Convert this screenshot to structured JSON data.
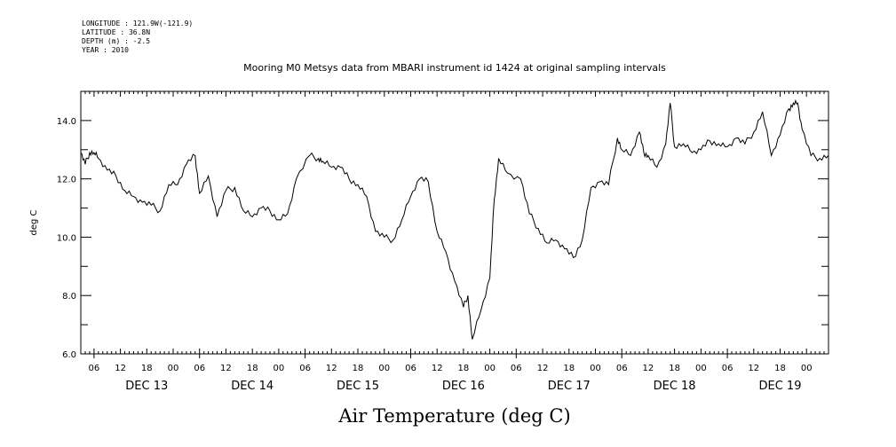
{
  "header": {
    "longitude": "LONGITUDE : 121.9W(-121.9)",
    "latitude": "LATITUDE : 36.8N",
    "depth": "DEPTH (m) : -2.5",
    "year": "YEAR : 2010",
    "title": "Mooring M0 Metsys data from MBARI instrument id 1424 at original sampling intervals"
  },
  "chart_data": {
    "type": "line",
    "title": "Mooring M0 Metsys data from MBARI instrument id 1424 at original sampling intervals",
    "bottom_title": "Air Temperature (deg C)",
    "ylabel": "deg C",
    "xlabel": "",
    "ylim": [
      6.0,
      15.0
    ],
    "xlim": [
      "2010-12-12 21:00",
      "2010-12-19 23:00"
    ],
    "grid": false,
    "y_ticks": [
      "6.0",
      "8.0",
      "10.0",
      "12.0",
      "14.0"
    ],
    "hour_ticks": [
      "06",
      "12",
      "18",
      "00",
      "06",
      "12",
      "18",
      "00",
      "06",
      "12",
      "18",
      "00",
      "06",
      "12",
      "18",
      "00",
      "06",
      "12",
      "18",
      "00",
      "06",
      "12",
      "18",
      "00",
      "06",
      "12",
      "18",
      "00"
    ],
    "day_labels": [
      "DEC 13",
      "DEC 14",
      "DEC 15",
      "DEC 16",
      "DEC 17",
      "DEC 18",
      "DEC 19"
    ],
    "series": [
      {
        "x": [
          "2010-12-12 21:00",
          "2010-12-12 22:00",
          "2010-12-12 23:00",
          "2010-12-13 00:00",
          "2010-12-13 01:00",
          "2010-12-13 03:00",
          "2010-12-13 05:00",
          "2010-12-13 07:00",
          "2010-12-13 09:00",
          "2010-12-13 11:00",
          "2010-12-13 13:00",
          "2010-12-13 15:00",
          "2010-12-13 17:00",
          "2010-12-13 19:00",
          "2010-12-13 21:00",
          "2010-12-13 23:00",
          "2010-12-14 00:00",
          "2010-12-14 02:00",
          "2010-12-14 04:00",
          "2010-12-14 06:00",
          "2010-12-14 08:00",
          "2010-12-14 10:00",
          "2010-12-14 12:00",
          "2010-12-14 14:00",
          "2010-12-14 16:00",
          "2010-12-14 18:00",
          "2010-12-14 20:00",
          "2010-12-14 22:00",
          "2010-12-15 01:00",
          "2010-12-15 03:00",
          "2010-12-15 04:00",
          "2010-12-15 06:00",
          "2010-12-15 08:00",
          "2010-12-15 10:00",
          "2010-12-15 12:00",
          "2010-12-15 14:00",
          "2010-12-15 16:00",
          "2010-12-15 18:00",
          "2010-12-15 20:00",
          "2010-12-15 22:00",
          "2010-12-16 00:00",
          "2010-12-16 02:00",
          "2010-12-16 04:00",
          "2010-12-16 06:00",
          "2010-12-16 08:00",
          "2010-12-16 10:00",
          "2010-12-16 12:00",
          "2010-12-16 13:00",
          "2010-12-16 14:00",
          "2010-12-16 16:00",
          "2010-12-16 18:00",
          "2010-12-16 19:00",
          "2010-12-16 20:00",
          "2010-12-16 22:00",
          "2010-12-17 01:00",
          "2010-12-17 03:00",
          "2010-12-17 05:00",
          "2010-12-17 07:00",
          "2010-12-17 09:00",
          "2010-12-17 11:00",
          "2010-12-17 13:00",
          "2010-12-17 15:00",
          "2010-12-17 17:00",
          "2010-12-17 19:00",
          "2010-12-17 21:00",
          "2010-12-17 23:00",
          "2010-12-18 00:00",
          "2010-12-18 02:00",
          "2010-12-18 04:00",
          "2010-12-18 05:00",
          "2010-12-18 06:00",
          "2010-12-18 08:00",
          "2010-12-18 10:00",
          "2010-12-18 11:00",
          "2010-12-18 12:00",
          "2010-12-18 14:00",
          "2010-12-18 16:00",
          "2010-12-18 18:00",
          "2010-12-18 20:00",
          "2010-12-18 22:00",
          "2010-12-19 00:00",
          "2010-12-19 02:00",
          "2010-12-19 04:00",
          "2010-12-19 06:00",
          "2010-12-19 08:00",
          "2010-12-19 10:00",
          "2010-12-19 12:00",
          "2010-12-19 14:00",
          "2010-12-19 15:00",
          "2010-12-19 16:00",
          "2010-12-19 17:00",
          "2010-12-19 19:00",
          "2010-12-19 21:00",
          "2010-12-19 23:00"
        ],
        "y": [
          12.9,
          12.5,
          12.9,
          12.9,
          12.7,
          12.3,
          12.1,
          11.6,
          11.4,
          11.2,
          11.1,
          10.9,
          11.8,
          11.8,
          12.5,
          12.8,
          11.5,
          12.1,
          10.7,
          11.6,
          11.7,
          10.9,
          10.7,
          11.0,
          10.9,
          10.6,
          10.8,
          12.0,
          12.8,
          12.7,
          12.6,
          12.4,
          12.4,
          12.0,
          11.8,
          11.4,
          10.2,
          10.0,
          9.9,
          10.6,
          11.4,
          12.0,
          11.9,
          10.2,
          9.5,
          8.5,
          7.6,
          8.0,
          6.5,
          7.5,
          8.6,
          11.3,
          12.7,
          12.2,
          12.0,
          10.8,
          10.3,
          9.8,
          9.9,
          9.6,
          9.3,
          9.9,
          11.7,
          11.9,
          11.8,
          13.4,
          13.0,
          12.8,
          13.6,
          12.9,
          12.8,
          12.4,
          13.2,
          14.6,
          13.1,
          13.2,
          12.9,
          13.0,
          13.3,
          13.2,
          13.1,
          13.4,
          13.2,
          13.6,
          14.3,
          12.8,
          13.5,
          14.4,
          14.6,
          14.6,
          13.7,
          12.8,
          12.7,
          12.8
        ]
      }
    ]
  }
}
